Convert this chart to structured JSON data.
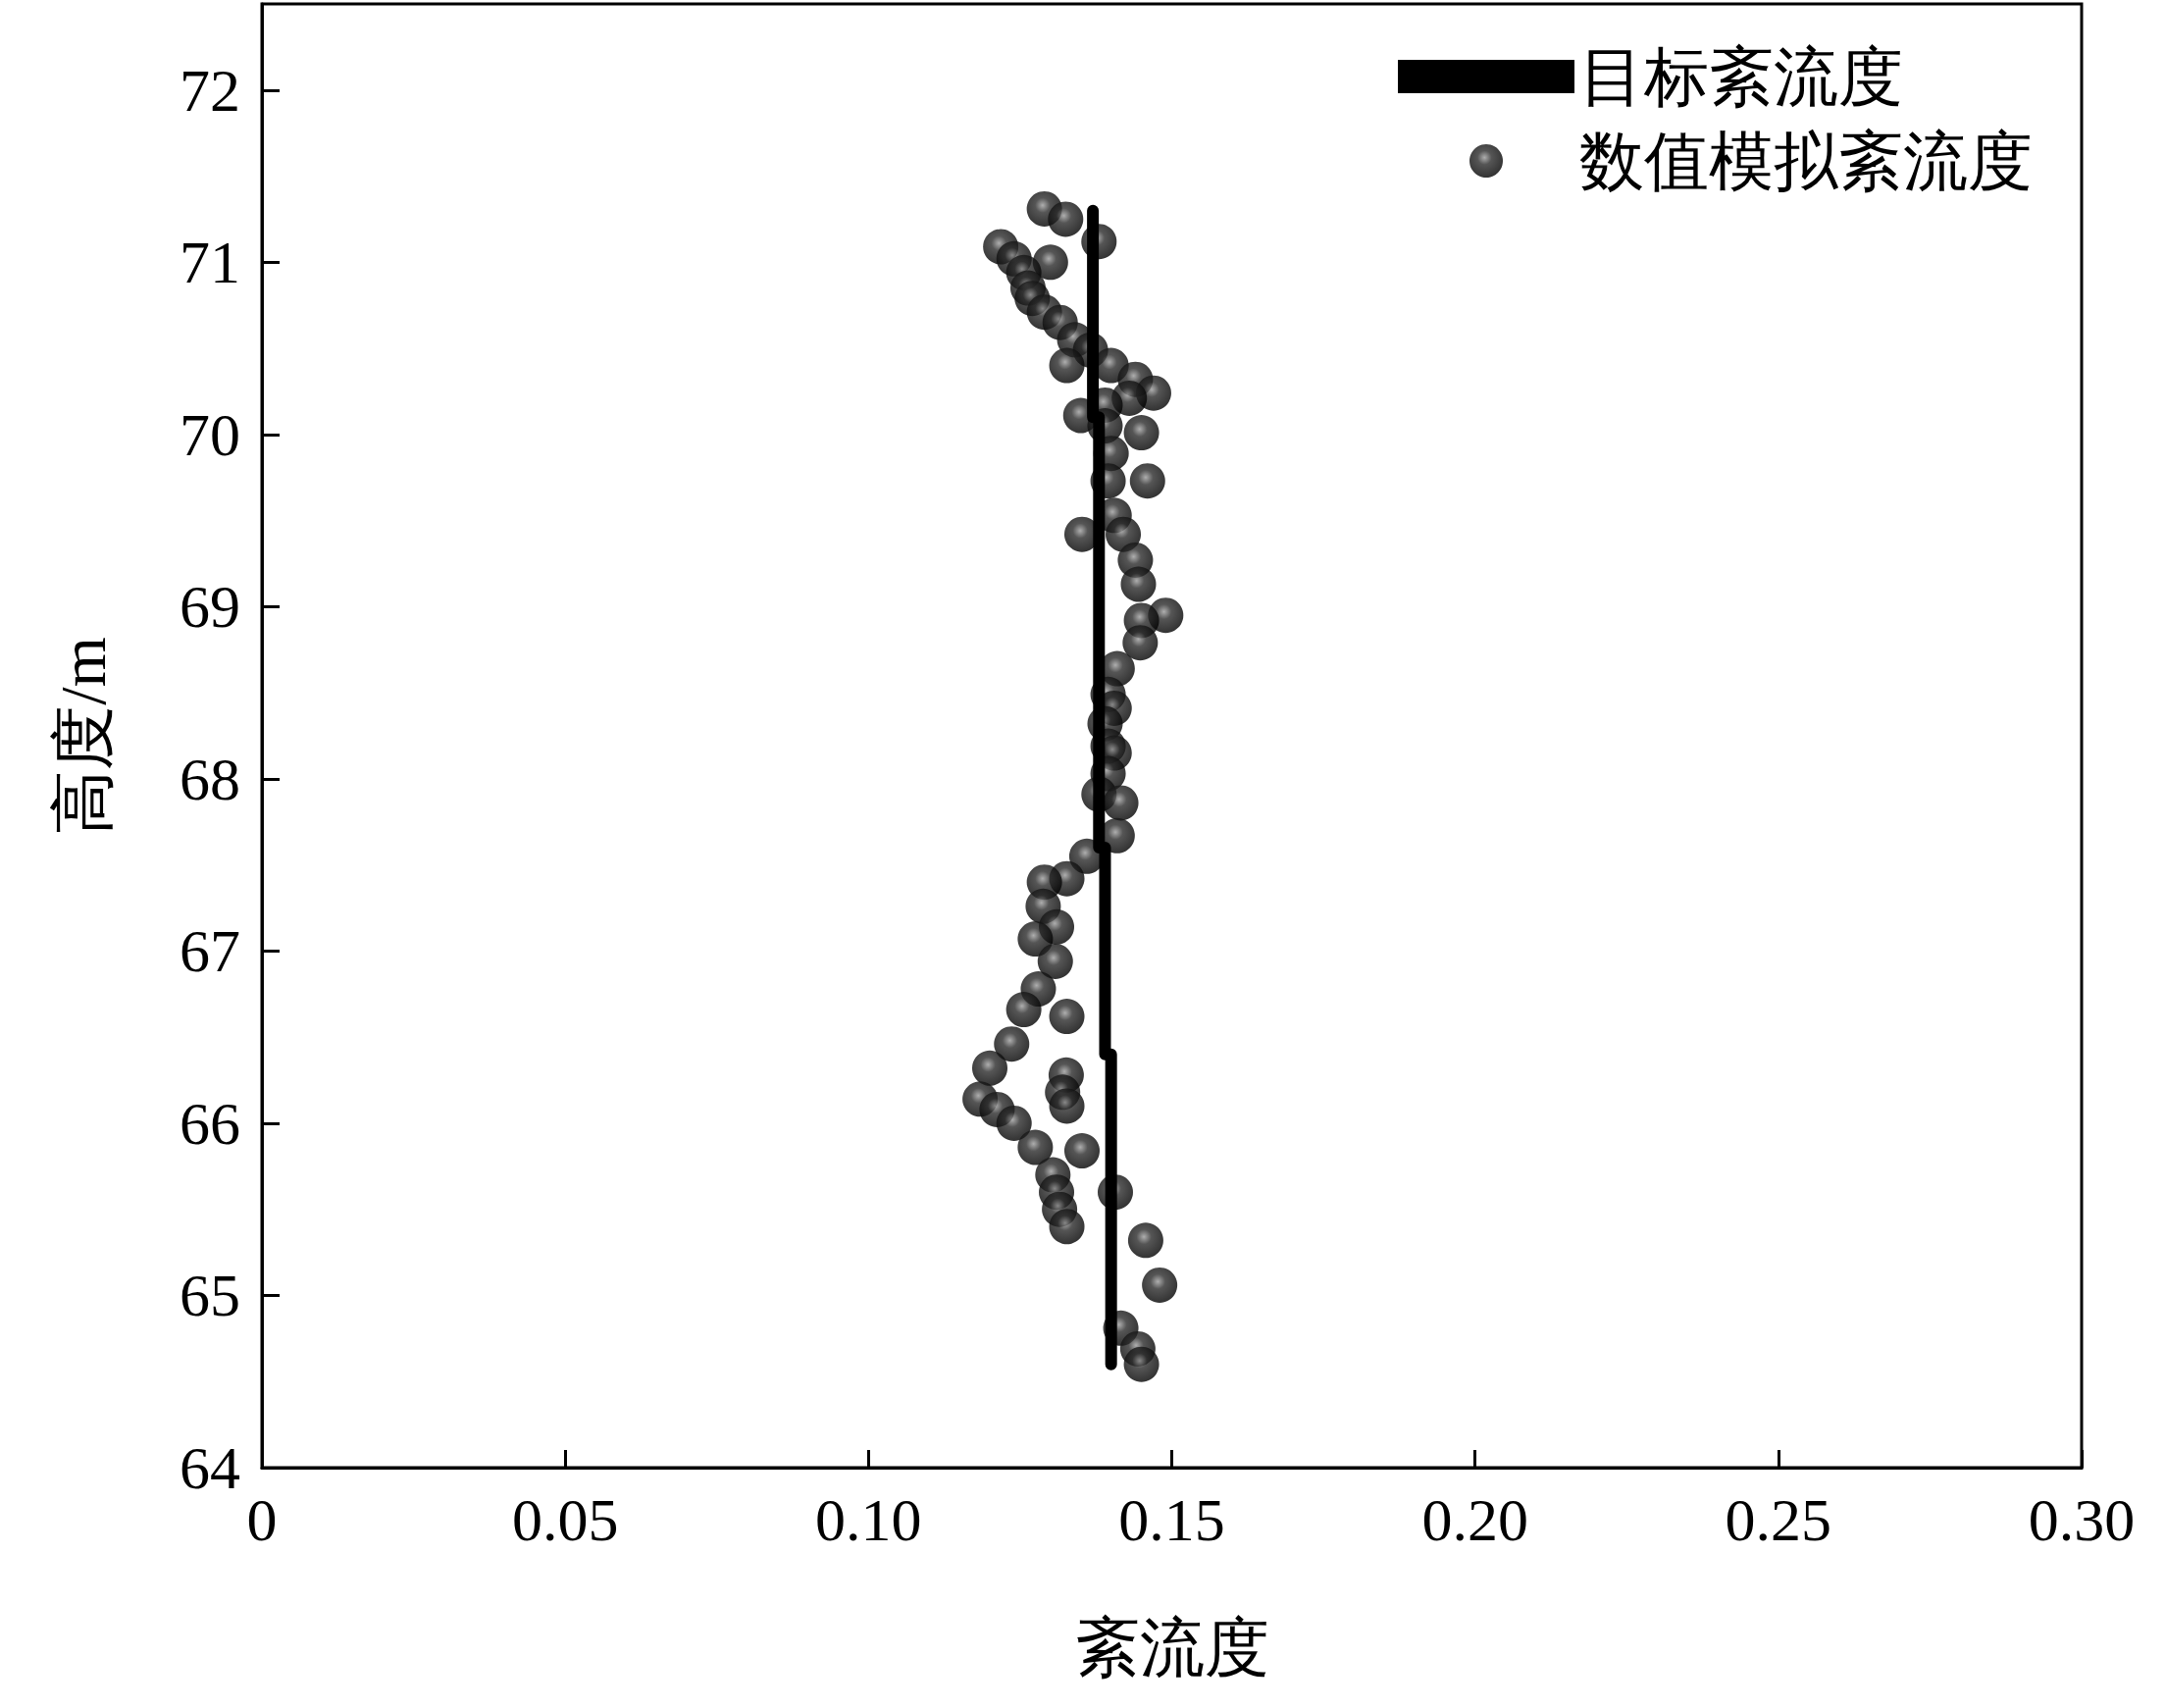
{
  "chart_data": {
    "type": "scatter",
    "xlabel": "紊流度",
    "ylabel": "高度/m",
    "xlim": [
      0,
      0.3
    ],
    "ylim": [
      64,
      72.5
    ],
    "xticks": [
      0,
      {
        "value": 0.05,
        "label": "0.05"
      },
      {
        "value": 0.1,
        "label": "0.10"
      },
      {
        "value": 0.15,
        "label": "0.15"
      },
      {
        "value": 0.2,
        "label": "0.20"
      },
      {
        "value": 0.25,
        "label": "0.25"
      },
      {
        "value": 0.3,
        "label": "0.30"
      }
    ],
    "yticks": [
      64,
      65,
      66,
      67,
      68,
      69,
      70,
      71,
      72
    ],
    "grid": false,
    "legend": "top right",
    "series": [
      {
        "name": "目标紊流度",
        "type": "line",
        "color": "#000000",
        "marker": "none",
        "line_style": "solid",
        "x": [
          0.137,
          0.137,
          0.138,
          0.138,
          0.139,
          0.139,
          0.14,
          0.14
        ],
        "values": [
          71.3,
          70.1,
          70.1,
          67.6,
          67.6,
          66.4,
          66.4,
          64.6
        ]
      },
      {
        "name": "数值模拟紊流度",
        "color": "#2b2b2b",
        "marker": "circle",
        "x": [
          0.129,
          0.1325,
          0.138,
          0.1218,
          0.124,
          0.13,
          0.1256,
          0.1263,
          0.127,
          0.129,
          0.1316,
          0.134,
          0.1366,
          0.1327,
          0.14,
          0.144,
          0.147,
          0.143,
          0.139,
          0.135,
          0.139,
          0.145,
          0.14,
          0.146,
          0.1395,
          0.1405,
          0.1352,
          0.142,
          0.144,
          0.1445,
          0.149,
          0.145,
          0.1448,
          0.141,
          0.1395,
          0.1405,
          0.139,
          0.1395,
          0.1405,
          0.1395,
          0.138,
          0.1416,
          0.141,
          0.136,
          0.1327,
          0.129,
          0.1288,
          0.131,
          0.1275,
          0.1308,
          0.128,
          0.1256,
          0.1327,
          0.1236,
          0.12,
          0.1326,
          0.132,
          0.1184,
          0.1327,
          0.1212,
          0.124,
          0.1275,
          0.1352,
          0.1304,
          0.131,
          0.1407,
          0.1315,
          0.1327,
          0.1457,
          0.148,
          0.1416,
          0.1444,
          0.145
        ],
        "values": [
          71.31,
          71.25,
          71.12,
          71.09,
          71.02,
          71.0,
          70.94,
          70.85,
          70.79,
          70.71,
          70.65,
          70.55,
          70.49,
          70.4,
          70.4,
          70.32,
          70.24,
          70.21,
          70.17,
          70.11,
          70.05,
          70.01,
          69.89,
          69.73,
          69.73,
          69.53,
          69.42,
          69.42,
          69.27,
          69.13,
          68.95,
          68.92,
          68.79,
          68.64,
          68.49,
          68.41,
          68.32,
          68.19,
          68.15,
          68.03,
          67.91,
          67.86,
          67.67,
          67.55,
          67.42,
          67.4,
          67.26,
          67.14,
          67.07,
          66.94,
          66.78,
          66.66,
          66.62,
          66.46,
          66.32,
          66.28,
          66.18,
          66.14,
          66.1,
          66.08,
          66.0,
          65.86,
          65.84,
          65.7,
          65.6,
          65.6,
          65.5,
          65.4,
          65.32,
          65.06,
          64.81,
          64.69,
          64.6
        ]
      }
    ]
  }
}
